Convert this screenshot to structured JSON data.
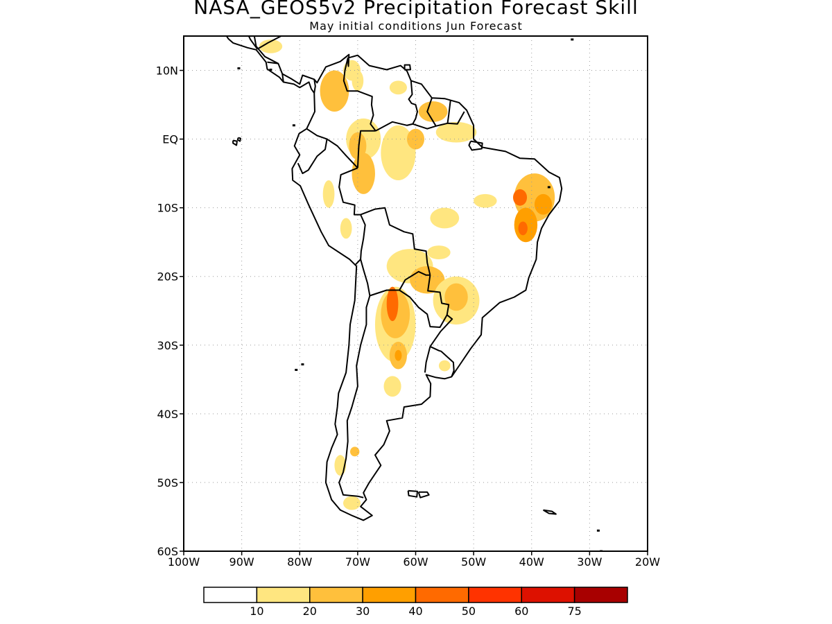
{
  "title": "NASA_GEOS5v2 Precipitation Forecast Skill",
  "subtitle": "May initial conditions  Jun Forecast",
  "map": {
    "lon_range": [
      -100,
      -20
    ],
    "lat_range": [
      -60,
      15
    ],
    "lon_ticks": [
      {
        "value": -100,
        "label": "100W"
      },
      {
        "value": -90,
        "label": "90W"
      },
      {
        "value": -80,
        "label": "80W"
      },
      {
        "value": -70,
        "label": "70W"
      },
      {
        "value": -60,
        "label": "60W"
      },
      {
        "value": -50,
        "label": "50W"
      },
      {
        "value": -40,
        "label": "40W"
      },
      {
        "value": -30,
        "label": "30W"
      },
      {
        "value": -20,
        "label": "20W"
      }
    ],
    "lat_ticks": [
      {
        "value": 10,
        "label": "10N"
      },
      {
        "value": 0,
        "label": "EQ"
      },
      {
        "value": -10,
        "label": "10S"
      },
      {
        "value": -20,
        "label": "20S"
      },
      {
        "value": -30,
        "label": "30S"
      },
      {
        "value": -40,
        "label": "40S"
      },
      {
        "value": -50,
        "label": "50S"
      },
      {
        "value": -60,
        "label": "60S"
      }
    ],
    "gridlines": "dotted"
  },
  "colorbar": {
    "colors": [
      "#ffffff",
      "#ffe680",
      "#ffc03c",
      "#ff9f00",
      "#ff6a00",
      "#ff3300",
      "#dd1100",
      "#a80000"
    ],
    "labels": [
      "10",
      "20",
      "30",
      "40",
      "50",
      "60",
      "75"
    ]
  },
  "skill_regions": [
    {
      "lon": -74,
      "lat": 7,
      "rx": 2.5,
      "ry": 3,
      "level": 2
    },
    {
      "lon": -71,
      "lat": 10,
      "rx": 1.5,
      "ry": 1.5,
      "level": 1
    },
    {
      "lon": -85,
      "lat": 13.5,
      "rx": 2,
      "ry": 1,
      "level": 1
    },
    {
      "lon": -70,
      "lat": 8.5,
      "rx": 1,
      "ry": 1.5,
      "level": 1
    },
    {
      "lon": -63,
      "lat": 7.5,
      "rx": 1.5,
      "ry": 1,
      "level": 1
    },
    {
      "lon": -57,
      "lat": 4,
      "rx": 2.5,
      "ry": 1.5,
      "level": 2
    },
    {
      "lon": -53,
      "lat": 1,
      "rx": 3.5,
      "ry": 1.5,
      "level": 1
    },
    {
      "lon": -69,
      "lat": 0,
      "rx": 3,
      "ry": 3,
      "level": 1
    },
    {
      "lon": -70,
      "lat": -1,
      "rx": 1.5,
      "ry": 2,
      "level": 2
    },
    {
      "lon": -69,
      "lat": -5,
      "rx": 2,
      "ry": 3,
      "level": 2
    },
    {
      "lon": -63,
      "lat": -2,
      "rx": 3,
      "ry": 4,
      "level": 1
    },
    {
      "lon": -60,
      "lat": 0,
      "rx": 1.5,
      "ry": 1.5,
      "level": 2
    },
    {
      "lon": -75,
      "lat": -8,
      "rx": 1,
      "ry": 2,
      "level": 1
    },
    {
      "lon": -72,
      "lat": -13,
      "rx": 1,
      "ry": 1.5,
      "level": 1
    },
    {
      "lon": -48,
      "lat": -9,
      "rx": 2,
      "ry": 1,
      "level": 1
    },
    {
      "lon": -55,
      "lat": -11.5,
      "rx": 2.5,
      "ry": 1.5,
      "level": 1
    },
    {
      "lon": -39.5,
      "lat": -8.5,
      "rx": 3.5,
      "ry": 3.5,
      "level": 2
    },
    {
      "lon": -42,
      "lat": -8.5,
      "rx": 1.2,
      "ry": 1.2,
      "level": 4
    },
    {
      "lon": -38,
      "lat": -9.5,
      "rx": 1.5,
      "ry": 1.5,
      "level": 3
    },
    {
      "lon": -41,
      "lat": -12.5,
      "rx": 2,
      "ry": 2.5,
      "level": 3
    },
    {
      "lon": -41.5,
      "lat": -13,
      "rx": 0.8,
      "ry": 1,
      "level": 4
    },
    {
      "lon": -61,
      "lat": -18.5,
      "rx": 4,
      "ry": 2.5,
      "level": 1
    },
    {
      "lon": -56,
      "lat": -16.5,
      "rx": 2,
      "ry": 1,
      "level": 1
    },
    {
      "lon": -58,
      "lat": -20.5,
      "rx": 3,
      "ry": 2,
      "level": 2
    },
    {
      "lon": -53,
      "lat": -23.5,
      "rx": 4,
      "ry": 3.5,
      "level": 1
    },
    {
      "lon": -53,
      "lat": -23,
      "rx": 2,
      "ry": 2,
      "level": 2
    },
    {
      "lon": -63.5,
      "lat": -27,
      "rx": 3.5,
      "ry": 5.5,
      "level": 1
    },
    {
      "lon": -63.5,
      "lat": -25.5,
      "rx": 2.5,
      "ry": 3.5,
      "level": 2
    },
    {
      "lon": -64,
      "lat": -24,
      "rx": 1,
      "ry": 2.5,
      "level": 4
    },
    {
      "lon": -63,
      "lat": -31.5,
      "rx": 1.5,
      "ry": 2,
      "level": 2
    },
    {
      "lon": -63,
      "lat": -31.5,
      "rx": 0.6,
      "ry": 0.8,
      "level": 3
    },
    {
      "lon": -64,
      "lat": -36,
      "rx": 1.5,
      "ry": 1.5,
      "level": 1
    },
    {
      "lon": -55,
      "lat": -33,
      "rx": 1,
      "ry": 0.8,
      "level": 1
    },
    {
      "lon": -70.5,
      "lat": -45.5,
      "rx": 0.8,
      "ry": 0.7,
      "level": 2
    },
    {
      "lon": -73,
      "lat": -47.5,
      "rx": 1,
      "ry": 1.5,
      "level": 1
    },
    {
      "lon": -71,
      "lat": -53,
      "rx": 1.5,
      "ry": 1,
      "level": 1
    }
  ]
}
